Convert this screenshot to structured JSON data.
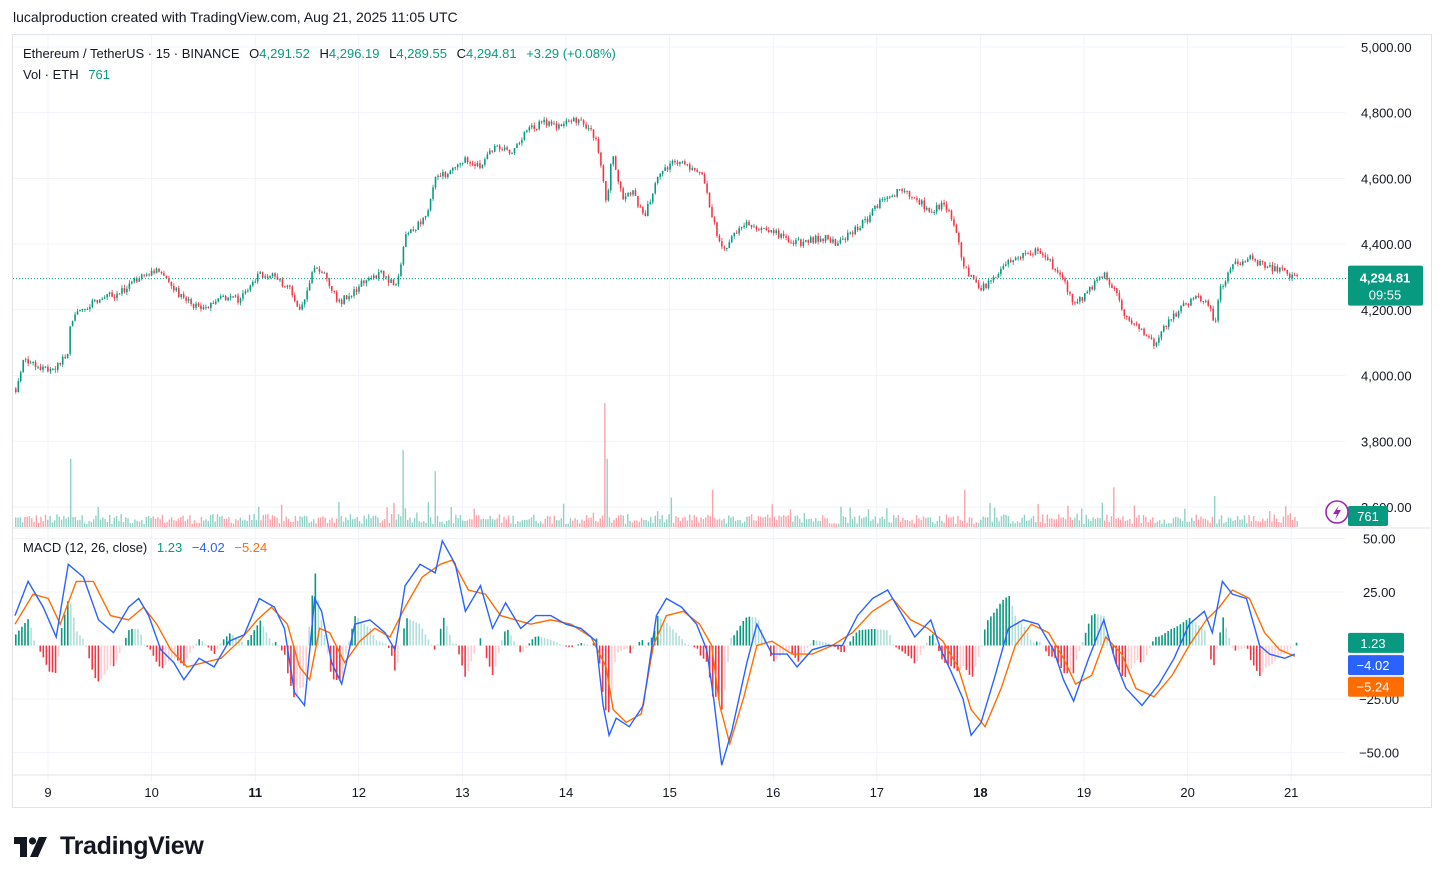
{
  "header": {
    "credit": "lucalproduction created with TradingView.com, Aug 21, 2025 11:05 UTC"
  },
  "legend": {
    "symbol": "Ethereum / TetherUS · 15 · BINANCE",
    "o_label": "O",
    "o_value": "4,291.52",
    "h_label": "H",
    "h_value": "4,296.19",
    "l_label": "L",
    "l_value": "4,289.55",
    "c_label": "C",
    "c_value": "4,294.81",
    "change": "+3.29 (+0.08%)",
    "vol_label": "Vol · ETH",
    "vol_value": "761",
    "macd_label": "MACD (12, 26, close)",
    "macd_hist": "1.23",
    "macd_line": "−4.02",
    "macd_signal": "−5.24"
  },
  "price_badge": {
    "price": "4,294.81",
    "countdown": "09:55"
  },
  "volume_badge": "761",
  "macd_badges": {
    "hist": "1.23",
    "macd": "−4.02",
    "signal": "−5.24"
  },
  "colors": {
    "up": "#089981",
    "down": "#f23645",
    "macd_line": "#2962ff",
    "signal_line": "#ff6d00",
    "grid": "#f0f3fa",
    "text": "#131722"
  },
  "brand": {
    "name": "TradingView"
  },
  "chart_data": [
    {
      "type": "candlestick",
      "title": "Ethereum / TetherUS · 15 · BINANCE",
      "x_ticks": [
        {
          "day": 9,
          "label": "9",
          "bold": false
        },
        {
          "day": 10,
          "label": "10",
          "bold": false
        },
        {
          "day": 11,
          "label": "11",
          "bold": true
        },
        {
          "day": 12,
          "label": "12",
          "bold": false
        },
        {
          "day": 13,
          "label": "13",
          "bold": false
        },
        {
          "day": 14,
          "label": "14",
          "bold": false
        },
        {
          "day": 15,
          "label": "15",
          "bold": false
        },
        {
          "day": 16,
          "label": "16",
          "bold": false
        },
        {
          "day": 17,
          "label": "17",
          "bold": false
        },
        {
          "day": 18,
          "label": "18",
          "bold": true
        },
        {
          "day": 19,
          "label": "19",
          "bold": false
        },
        {
          "day": 20,
          "label": "20",
          "bold": false
        },
        {
          "day": 21,
          "label": "21",
          "bold": false
        }
      ],
      "x_range_days": [
        8.65,
        21.85
      ],
      "y_ticks": [
        {
          "value": 5000,
          "label": "5,000.00"
        },
        {
          "value": 4800,
          "label": "4,800.00"
        },
        {
          "value": 4600,
          "label": "4,600.00"
        },
        {
          "value": 4400,
          "label": "4,400.00"
        },
        {
          "value": 4200,
          "label": "4,200.00"
        },
        {
          "value": 4000,
          "label": "4,000.00"
        },
        {
          "value": 3800,
          "label": "3,800.00"
        },
        {
          "value": 3600,
          "label": "3,600.00"
        }
      ],
      "ylim": [
        3530,
        5030
      ],
      "last_price": 4294.81,
      "close_path": [
        [
          8.67,
          3960
        ],
        [
          8.75,
          4050
        ],
        [
          8.85,
          4040
        ],
        [
          9.0,
          4010
        ],
        [
          9.18,
          4060
        ],
        [
          9.22,
          4170
        ],
        [
          9.45,
          4230
        ],
        [
          9.7,
          4250
        ],
        [
          9.9,
          4300
        ],
        [
          10.05,
          4320
        ],
        [
          10.2,
          4280
        ],
        [
          10.35,
          4230
        ],
        [
          10.55,
          4200
        ],
        [
          10.75,
          4240
        ],
        [
          10.9,
          4230
        ],
        [
          11.1,
          4310
        ],
        [
          11.25,
          4300
        ],
        [
          11.4,
          4260
        ],
        [
          11.5,
          4200
        ],
        [
          11.65,
          4340
        ],
        [
          11.75,
          4300
        ],
        [
          11.88,
          4220
        ],
        [
          12.0,
          4250
        ],
        [
          12.15,
          4290
        ],
        [
          12.3,
          4310
        ],
        [
          12.45,
          4270
        ],
        [
          12.55,
          4420
        ],
        [
          12.75,
          4490
        ],
        [
          12.85,
          4600
        ],
        [
          13.0,
          4620
        ],
        [
          13.15,
          4660
        ],
        [
          13.3,
          4640
        ],
        [
          13.45,
          4700
        ],
        [
          13.6,
          4680
        ],
        [
          13.75,
          4740
        ],
        [
          13.9,
          4770
        ],
        [
          14.05,
          4760
        ],
        [
          14.2,
          4780
        ],
        [
          14.35,
          4760
        ],
        [
          14.45,
          4720
        ],
        [
          14.55,
          4520
        ],
        [
          14.6,
          4680
        ],
        [
          14.7,
          4540
        ],
        [
          14.8,
          4560
        ],
        [
          14.92,
          4480
        ],
        [
          15.05,
          4600
        ],
        [
          15.2,
          4650
        ],
        [
          15.35,
          4640
        ],
        [
          15.5,
          4620
        ],
        [
          15.6,
          4480
        ],
        [
          15.7,
          4380
        ],
        [
          15.8,
          4420
        ],
        [
          15.95,
          4460
        ],
        [
          16.1,
          4450
        ],
        [
          16.25,
          4430
        ],
        [
          16.4,
          4400
        ],
        [
          16.55,
          4410
        ],
        [
          16.7,
          4420
        ],
        [
          16.85,
          4400
        ],
        [
          17.0,
          4440
        ],
        [
          17.15,
          4480
        ],
        [
          17.3,
          4540
        ],
        [
          17.45,
          4560
        ],
        [
          17.6,
          4550
        ],
        [
          17.75,
          4500
        ],
        [
          17.9,
          4520
        ],
        [
          18.0,
          4470
        ],
        [
          18.1,
          4330
        ],
        [
          18.25,
          4260
        ],
        [
          18.4,
          4290
        ],
        [
          18.55,
          4350
        ],
        [
          18.7,
          4370
        ],
        [
          18.85,
          4380
        ],
        [
          19.0,
          4330
        ],
        [
          19.1,
          4280
        ],
        [
          19.2,
          4210
        ],
        [
          19.35,
          4260
        ],
        [
          19.5,
          4310
        ],
        [
          19.6,
          4260
        ],
        [
          19.7,
          4180
        ],
        [
          19.85,
          4140
        ],
        [
          20.0,
          4090
        ],
        [
          20.1,
          4150
        ],
        [
          20.25,
          4200
        ],
        [
          20.4,
          4240
        ],
        [
          20.55,
          4210
        ],
        [
          20.6,
          4150
        ],
        [
          20.65,
          4270
        ],
        [
          20.8,
          4340
        ],
        [
          20.95,
          4360
        ],
        [
          21.1,
          4330
        ],
        [
          21.25,
          4320
        ],
        [
          21.4,
          4295
        ]
      ]
    },
    {
      "type": "bar",
      "title": "Vol · ETH",
      "last_value": 761,
      "spikes": [
        {
          "day": 9.22,
          "rel": 0.55
        },
        {
          "day": 12.53,
          "rel": 0.62
        },
        {
          "day": 12.85,
          "rel": 0.45
        },
        {
          "day": 14.53,
          "rel": 1.0
        },
        {
          "day": 14.56,
          "rel": 0.55
        },
        {
          "day": 15.6,
          "rel": 0.3
        },
        {
          "day": 18.1,
          "rel": 0.3
        },
        {
          "day": 19.6,
          "rel": 0.32
        },
        {
          "day": 20.6,
          "rel": 0.25
        }
      ]
    },
    {
      "type": "line",
      "title": "MACD (12, 26, close)",
      "y_ticks": [
        {
          "value": 50,
          "label": "50.00"
        },
        {
          "value": 25,
          "label": "25.00"
        },
        {
          "value": -25,
          "label": "−25.00"
        },
        {
          "value": -50,
          "label": "−50.00"
        }
      ],
      "ylim": [
        -62,
        55
      ],
      "macd_path": [
        [
          8.67,
          14
        ],
        [
          8.8,
          30
        ],
        [
          8.95,
          18
        ],
        [
          9.08,
          4
        ],
        [
          9.2,
          38
        ],
        [
          9.35,
          32
        ],
        [
          9.5,
          12
        ],
        [
          9.65,
          6
        ],
        [
          9.8,
          18
        ],
        [
          9.9,
          22
        ],
        [
          10.0,
          14
        ],
        [
          10.12,
          -2
        ],
        [
          10.25,
          -8
        ],
        [
          10.35,
          -16
        ],
        [
          10.5,
          -6
        ],
        [
          10.65,
          -10
        ],
        [
          10.8,
          2
        ],
        [
          10.95,
          5
        ],
        [
          11.1,
          22
        ],
        [
          11.25,
          18
        ],
        [
          11.35,
          8
        ],
        [
          11.45,
          -22
        ],
        [
          11.55,
          -28
        ],
        [
          11.65,
          22
        ],
        [
          11.72,
          16
        ],
        [
          11.82,
          -8
        ],
        [
          11.92,
          -18
        ],
        [
          12.05,
          10
        ],
        [
          12.2,
          12
        ],
        [
          12.35,
          6
        ],
        [
          12.45,
          -2
        ],
        [
          12.55,
          28
        ],
        [
          12.7,
          38
        ],
        [
          12.85,
          34
        ],
        [
          12.92,
          49
        ],
        [
          13.05,
          38
        ],
        [
          13.15,
          16
        ],
        [
          13.3,
          28
        ],
        [
          13.42,
          8
        ],
        [
          13.55,
          20
        ],
        [
          13.7,
          8
        ],
        [
          13.85,
          14
        ],
        [
          14.0,
          14
        ],
        [
          14.15,
          10
        ],
        [
          14.3,
          8
        ],
        [
          14.45,
          2
        ],
        [
          14.52,
          -28
        ],
        [
          14.58,
          -42
        ],
        [
          14.65,
          -34
        ],
        [
          14.78,
          -38
        ],
        [
          14.92,
          -28
        ],
        [
          15.05,
          14
        ],
        [
          15.15,
          22
        ],
        [
          15.3,
          18
        ],
        [
          15.45,
          10
        ],
        [
          15.55,
          -2
        ],
        [
          15.62,
          -25
        ],
        [
          15.7,
          -56
        ],
        [
          15.8,
          -40
        ],
        [
          15.95,
          -8
        ],
        [
          16.05,
          10
        ],
        [
          16.2,
          -4
        ],
        [
          16.35,
          -4
        ],
        [
          16.45,
          -10
        ],
        [
          16.6,
          -2
        ],
        [
          16.75,
          0
        ],
        [
          16.9,
          0
        ],
        [
          17.05,
          14
        ],
        [
          17.2,
          22
        ],
        [
          17.35,
          26
        ],
        [
          17.5,
          14
        ],
        [
          17.62,
          4
        ],
        [
          17.78,
          12
        ],
        [
          17.88,
          -2
        ],
        [
          17.98,
          -12
        ],
        [
          18.1,
          -25
        ],
        [
          18.18,
          -42
        ],
        [
          18.28,
          -36
        ],
        [
          18.42,
          -14
        ],
        [
          18.55,
          8
        ],
        [
          18.7,
          12
        ],
        [
          18.85,
          10
        ],
        [
          19.0,
          -2
        ],
        [
          19.1,
          -16
        ],
        [
          19.2,
          -26
        ],
        [
          19.35,
          -6
        ],
        [
          19.5,
          12
        ],
        [
          19.62,
          -8
        ],
        [
          19.72,
          -20
        ],
        [
          19.88,
          -28
        ],
        [
          20.05,
          -18
        ],
        [
          20.2,
          -6
        ],
        [
          20.35,
          10
        ],
        [
          20.5,
          16
        ],
        [
          20.58,
          6
        ],
        [
          20.68,
          30
        ],
        [
          20.78,
          24
        ],
        [
          20.92,
          22
        ],
        [
          21.05,
          0
        ],
        [
          21.15,
          -4
        ],
        [
          21.3,
          -6
        ],
        [
          21.4,
          -4
        ]
      ],
      "signal_path": [
        [
          8.67,
          10
        ],
        [
          8.85,
          24
        ],
        [
          9.0,
          22
        ],
        [
          9.12,
          10
        ],
        [
          9.28,
          30
        ],
        [
          9.45,
          30
        ],
        [
          9.62,
          14
        ],
        [
          9.8,
          12
        ],
        [
          9.95,
          18
        ],
        [
          10.08,
          10
        ],
        [
          10.22,
          -2
        ],
        [
          10.38,
          -10
        ],
        [
          10.55,
          -8
        ],
        [
          10.72,
          -6
        ],
        [
          10.9,
          2
        ],
        [
          11.08,
          12
        ],
        [
          11.22,
          18
        ],
        [
          11.38,
          10
        ],
        [
          11.5,
          -10
        ],
        [
          11.6,
          -16
        ],
        [
          11.7,
          8
        ],
        [
          11.8,
          6
        ],
        [
          11.95,
          -8
        ],
        [
          12.1,
          2
        ],
        [
          12.25,
          8
        ],
        [
          12.4,
          4
        ],
        [
          12.55,
          18
        ],
        [
          12.72,
          32
        ],
        [
          12.9,
          38
        ],
        [
          13.02,
          40
        ],
        [
          13.18,
          26
        ],
        [
          13.35,
          24
        ],
        [
          13.5,
          14
        ],
        [
          13.65,
          12
        ],
        [
          13.8,
          10
        ],
        [
          14.0,
          12
        ],
        [
          14.2,
          10
        ],
        [
          14.4,
          4
        ],
        [
          14.55,
          -10
        ],
        [
          14.62,
          -30
        ],
        [
          14.75,
          -36
        ],
        [
          14.9,
          -32
        ],
        [
          15.02,
          0
        ],
        [
          15.15,
          14
        ],
        [
          15.32,
          16
        ],
        [
          15.48,
          10
        ],
        [
          15.6,
          0
        ],
        [
          15.68,
          -28
        ],
        [
          15.78,
          -46
        ],
        [
          15.92,
          -24
        ],
        [
          16.05,
          0
        ],
        [
          16.2,
          2
        ],
        [
          16.4,
          -4
        ],
        [
          16.6,
          -4
        ],
        [
          16.8,
          0
        ],
        [
          17.0,
          6
        ],
        [
          17.2,
          16
        ],
        [
          17.4,
          22
        ],
        [
          17.58,
          12
        ],
        [
          17.75,
          8
        ],
        [
          17.9,
          2
        ],
        [
          18.05,
          -10
        ],
        [
          18.18,
          -30
        ],
        [
          18.32,
          -38
        ],
        [
          18.48,
          -20
        ],
        [
          18.62,
          0
        ],
        [
          18.78,
          10
        ],
        [
          18.95,
          6
        ],
        [
          19.1,
          -6
        ],
        [
          19.22,
          -18
        ],
        [
          19.38,
          -14
        ],
        [
          19.52,
          4
        ],
        [
          19.68,
          -4
        ],
        [
          19.82,
          -20
        ],
        [
          20.0,
          -24
        ],
        [
          20.18,
          -14
        ],
        [
          20.35,
          0
        ],
        [
          20.52,
          12
        ],
        [
          20.65,
          18
        ],
        [
          20.78,
          26
        ],
        [
          20.95,
          22
        ],
        [
          21.1,
          6
        ],
        [
          21.25,
          -2
        ],
        [
          21.4,
          -5
        ]
      ]
    }
  ]
}
